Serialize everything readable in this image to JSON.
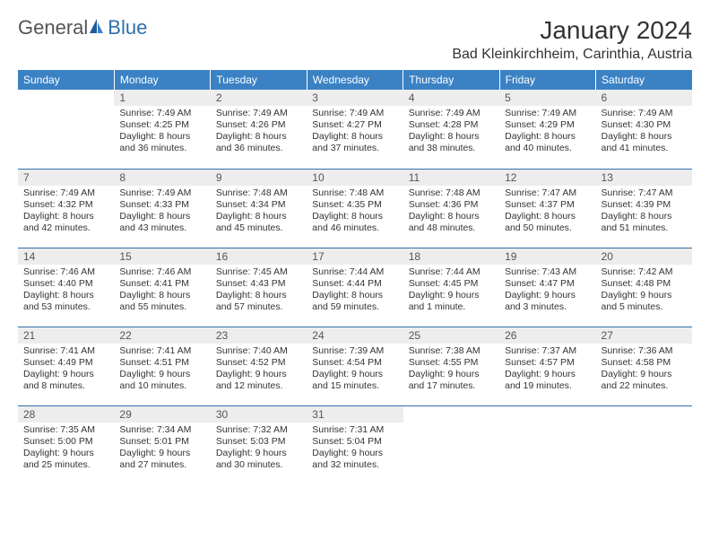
{
  "logo": {
    "general": "General",
    "blue": "Blue"
  },
  "title": "January 2024",
  "location": "Bad Kleinkirchheim, Carinthia, Austria",
  "colors": {
    "header_bg": "#3b82c4",
    "daynum_bg": "#ededed",
    "rule": "#2f6fab",
    "text": "#333333",
    "logo_gray": "#555555",
    "logo_blue": "#2f6fab"
  },
  "weekdays": [
    "Sunday",
    "Monday",
    "Tuesday",
    "Wednesday",
    "Thursday",
    "Friday",
    "Saturday"
  ],
  "weeks": [
    [
      null,
      {
        "day": "1",
        "sunrise": "Sunrise: 7:49 AM",
        "sunset": "Sunset: 4:25 PM",
        "daylight1": "Daylight: 8 hours",
        "daylight2": "and 36 minutes."
      },
      {
        "day": "2",
        "sunrise": "Sunrise: 7:49 AM",
        "sunset": "Sunset: 4:26 PM",
        "daylight1": "Daylight: 8 hours",
        "daylight2": "and 36 minutes."
      },
      {
        "day": "3",
        "sunrise": "Sunrise: 7:49 AM",
        "sunset": "Sunset: 4:27 PM",
        "daylight1": "Daylight: 8 hours",
        "daylight2": "and 37 minutes."
      },
      {
        "day": "4",
        "sunrise": "Sunrise: 7:49 AM",
        "sunset": "Sunset: 4:28 PM",
        "daylight1": "Daylight: 8 hours",
        "daylight2": "and 38 minutes."
      },
      {
        "day": "5",
        "sunrise": "Sunrise: 7:49 AM",
        "sunset": "Sunset: 4:29 PM",
        "daylight1": "Daylight: 8 hours",
        "daylight2": "and 40 minutes."
      },
      {
        "day": "6",
        "sunrise": "Sunrise: 7:49 AM",
        "sunset": "Sunset: 4:30 PM",
        "daylight1": "Daylight: 8 hours",
        "daylight2": "and 41 minutes."
      }
    ],
    [
      {
        "day": "7",
        "sunrise": "Sunrise: 7:49 AM",
        "sunset": "Sunset: 4:32 PM",
        "daylight1": "Daylight: 8 hours",
        "daylight2": "and 42 minutes."
      },
      {
        "day": "8",
        "sunrise": "Sunrise: 7:49 AM",
        "sunset": "Sunset: 4:33 PM",
        "daylight1": "Daylight: 8 hours",
        "daylight2": "and 43 minutes."
      },
      {
        "day": "9",
        "sunrise": "Sunrise: 7:48 AM",
        "sunset": "Sunset: 4:34 PM",
        "daylight1": "Daylight: 8 hours",
        "daylight2": "and 45 minutes."
      },
      {
        "day": "10",
        "sunrise": "Sunrise: 7:48 AM",
        "sunset": "Sunset: 4:35 PM",
        "daylight1": "Daylight: 8 hours",
        "daylight2": "and 46 minutes."
      },
      {
        "day": "11",
        "sunrise": "Sunrise: 7:48 AM",
        "sunset": "Sunset: 4:36 PM",
        "daylight1": "Daylight: 8 hours",
        "daylight2": "and 48 minutes."
      },
      {
        "day": "12",
        "sunrise": "Sunrise: 7:47 AM",
        "sunset": "Sunset: 4:37 PM",
        "daylight1": "Daylight: 8 hours",
        "daylight2": "and 50 minutes."
      },
      {
        "day": "13",
        "sunrise": "Sunrise: 7:47 AM",
        "sunset": "Sunset: 4:39 PM",
        "daylight1": "Daylight: 8 hours",
        "daylight2": "and 51 minutes."
      }
    ],
    [
      {
        "day": "14",
        "sunrise": "Sunrise: 7:46 AM",
        "sunset": "Sunset: 4:40 PM",
        "daylight1": "Daylight: 8 hours",
        "daylight2": "and 53 minutes."
      },
      {
        "day": "15",
        "sunrise": "Sunrise: 7:46 AM",
        "sunset": "Sunset: 4:41 PM",
        "daylight1": "Daylight: 8 hours",
        "daylight2": "and 55 minutes."
      },
      {
        "day": "16",
        "sunrise": "Sunrise: 7:45 AM",
        "sunset": "Sunset: 4:43 PM",
        "daylight1": "Daylight: 8 hours",
        "daylight2": "and 57 minutes."
      },
      {
        "day": "17",
        "sunrise": "Sunrise: 7:44 AM",
        "sunset": "Sunset: 4:44 PM",
        "daylight1": "Daylight: 8 hours",
        "daylight2": "and 59 minutes."
      },
      {
        "day": "18",
        "sunrise": "Sunrise: 7:44 AM",
        "sunset": "Sunset: 4:45 PM",
        "daylight1": "Daylight: 9 hours",
        "daylight2": "and 1 minute."
      },
      {
        "day": "19",
        "sunrise": "Sunrise: 7:43 AM",
        "sunset": "Sunset: 4:47 PM",
        "daylight1": "Daylight: 9 hours",
        "daylight2": "and 3 minutes."
      },
      {
        "day": "20",
        "sunrise": "Sunrise: 7:42 AM",
        "sunset": "Sunset: 4:48 PM",
        "daylight1": "Daylight: 9 hours",
        "daylight2": "and 5 minutes."
      }
    ],
    [
      {
        "day": "21",
        "sunrise": "Sunrise: 7:41 AM",
        "sunset": "Sunset: 4:49 PM",
        "daylight1": "Daylight: 9 hours",
        "daylight2": "and 8 minutes."
      },
      {
        "day": "22",
        "sunrise": "Sunrise: 7:41 AM",
        "sunset": "Sunset: 4:51 PM",
        "daylight1": "Daylight: 9 hours",
        "daylight2": "and 10 minutes."
      },
      {
        "day": "23",
        "sunrise": "Sunrise: 7:40 AM",
        "sunset": "Sunset: 4:52 PM",
        "daylight1": "Daylight: 9 hours",
        "daylight2": "and 12 minutes."
      },
      {
        "day": "24",
        "sunrise": "Sunrise: 7:39 AM",
        "sunset": "Sunset: 4:54 PM",
        "daylight1": "Daylight: 9 hours",
        "daylight2": "and 15 minutes."
      },
      {
        "day": "25",
        "sunrise": "Sunrise: 7:38 AM",
        "sunset": "Sunset: 4:55 PM",
        "daylight1": "Daylight: 9 hours",
        "daylight2": "and 17 minutes."
      },
      {
        "day": "26",
        "sunrise": "Sunrise: 7:37 AM",
        "sunset": "Sunset: 4:57 PM",
        "daylight1": "Daylight: 9 hours",
        "daylight2": "and 19 minutes."
      },
      {
        "day": "27",
        "sunrise": "Sunrise: 7:36 AM",
        "sunset": "Sunset: 4:58 PM",
        "daylight1": "Daylight: 9 hours",
        "daylight2": "and 22 minutes."
      }
    ],
    [
      {
        "day": "28",
        "sunrise": "Sunrise: 7:35 AM",
        "sunset": "Sunset: 5:00 PM",
        "daylight1": "Daylight: 9 hours",
        "daylight2": "and 25 minutes."
      },
      {
        "day": "29",
        "sunrise": "Sunrise: 7:34 AM",
        "sunset": "Sunset: 5:01 PM",
        "daylight1": "Daylight: 9 hours",
        "daylight2": "and 27 minutes."
      },
      {
        "day": "30",
        "sunrise": "Sunrise: 7:32 AM",
        "sunset": "Sunset: 5:03 PM",
        "daylight1": "Daylight: 9 hours",
        "daylight2": "and 30 minutes."
      },
      {
        "day": "31",
        "sunrise": "Sunrise: 7:31 AM",
        "sunset": "Sunset: 5:04 PM",
        "daylight1": "Daylight: 9 hours",
        "daylight2": "and 32 minutes."
      },
      null,
      null,
      null
    ]
  ]
}
